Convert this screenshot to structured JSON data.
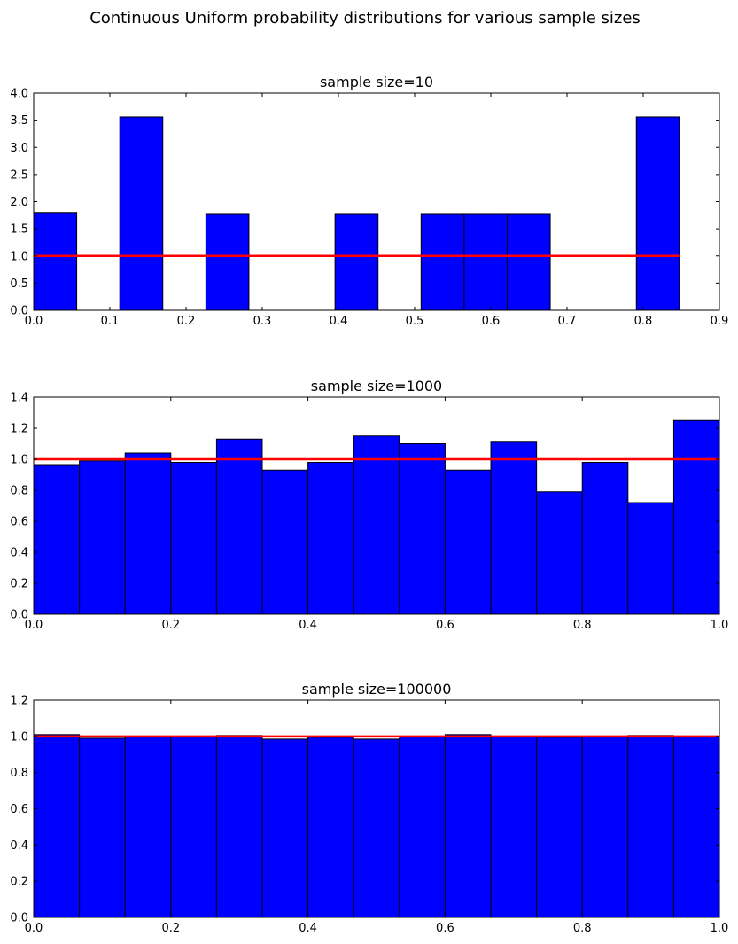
{
  "figure_title": "Continuous Uniform probability distributions for various sample sizes",
  "colors": {
    "bar": "#0000ff",
    "bar_edge": "#000000",
    "reference_line": "#ff0000",
    "axes": "#000000"
  },
  "chart_data": [
    {
      "type": "bar",
      "title": "sample size=10",
      "xlim": [
        0,
        0.9
      ],
      "ylim": [
        0,
        4.0
      ],
      "x_ticks": [
        "0.0",
        "0.1",
        "0.2",
        "0.3",
        "0.4",
        "0.5",
        "0.6",
        "0.7",
        "0.8",
        "0.9"
      ],
      "y_ticks": [
        "0.0",
        "0.5",
        "1.0",
        "1.5",
        "2.0",
        "2.5",
        "3.0",
        "3.5",
        "4.0"
      ],
      "bin_start": 0.0,
      "bin_width": 0.0565,
      "values": [
        1.8,
        0,
        3.56,
        0,
        1.78,
        0,
        0,
        1.78,
        0,
        1.78,
        1.78,
        1.78,
        0,
        0,
        3.56
      ],
      "reference_line": {
        "y": 1.0,
        "x_start": 0.0,
        "x_end": 0.8475
      }
    },
    {
      "type": "bar",
      "title": "sample size=1000",
      "xlim": [
        0,
        1.0
      ],
      "ylim": [
        0,
        1.4
      ],
      "x_ticks": [
        "0.0",
        "0.2",
        "0.4",
        "0.6",
        "0.8",
        "1.0"
      ],
      "y_ticks": [
        "0.0",
        "0.2",
        "0.4",
        "0.6",
        "0.8",
        "1.0",
        "1.2",
        "1.4"
      ],
      "bin_start": 0.0,
      "bin_width": 0.06667,
      "values": [
        0.96,
        0.99,
        1.04,
        0.98,
        1.13,
        0.93,
        0.98,
        1.15,
        1.1,
        0.93,
        1.11,
        0.79,
        0.98,
        0.72,
        1.25
      ],
      "reference_line": {
        "y": 1.0,
        "x_start": 0.0,
        "x_end": 1.0
      }
    },
    {
      "type": "bar",
      "title": "sample size=100000",
      "xlim": [
        0,
        1.0
      ],
      "ylim": [
        0,
        1.2
      ],
      "x_ticks": [
        "0.0",
        "0.2",
        "0.4",
        "0.6",
        "0.8",
        "1.0"
      ],
      "y_ticks": [
        "0.0",
        "0.2",
        "0.4",
        "0.6",
        "0.8",
        "1.0",
        "1.2"
      ],
      "bin_start": 0.0,
      "bin_width": 0.06667,
      "values": [
        1.01,
        0.99,
        1.0,
        1.0,
        1.005,
        0.985,
        0.995,
        0.985,
        1.0,
        1.01,
        1.0,
        0.995,
        1.0,
        1.005,
        1.0
      ],
      "reference_line": {
        "y": 1.0,
        "x_start": 0.0,
        "x_end": 1.0
      }
    }
  ]
}
